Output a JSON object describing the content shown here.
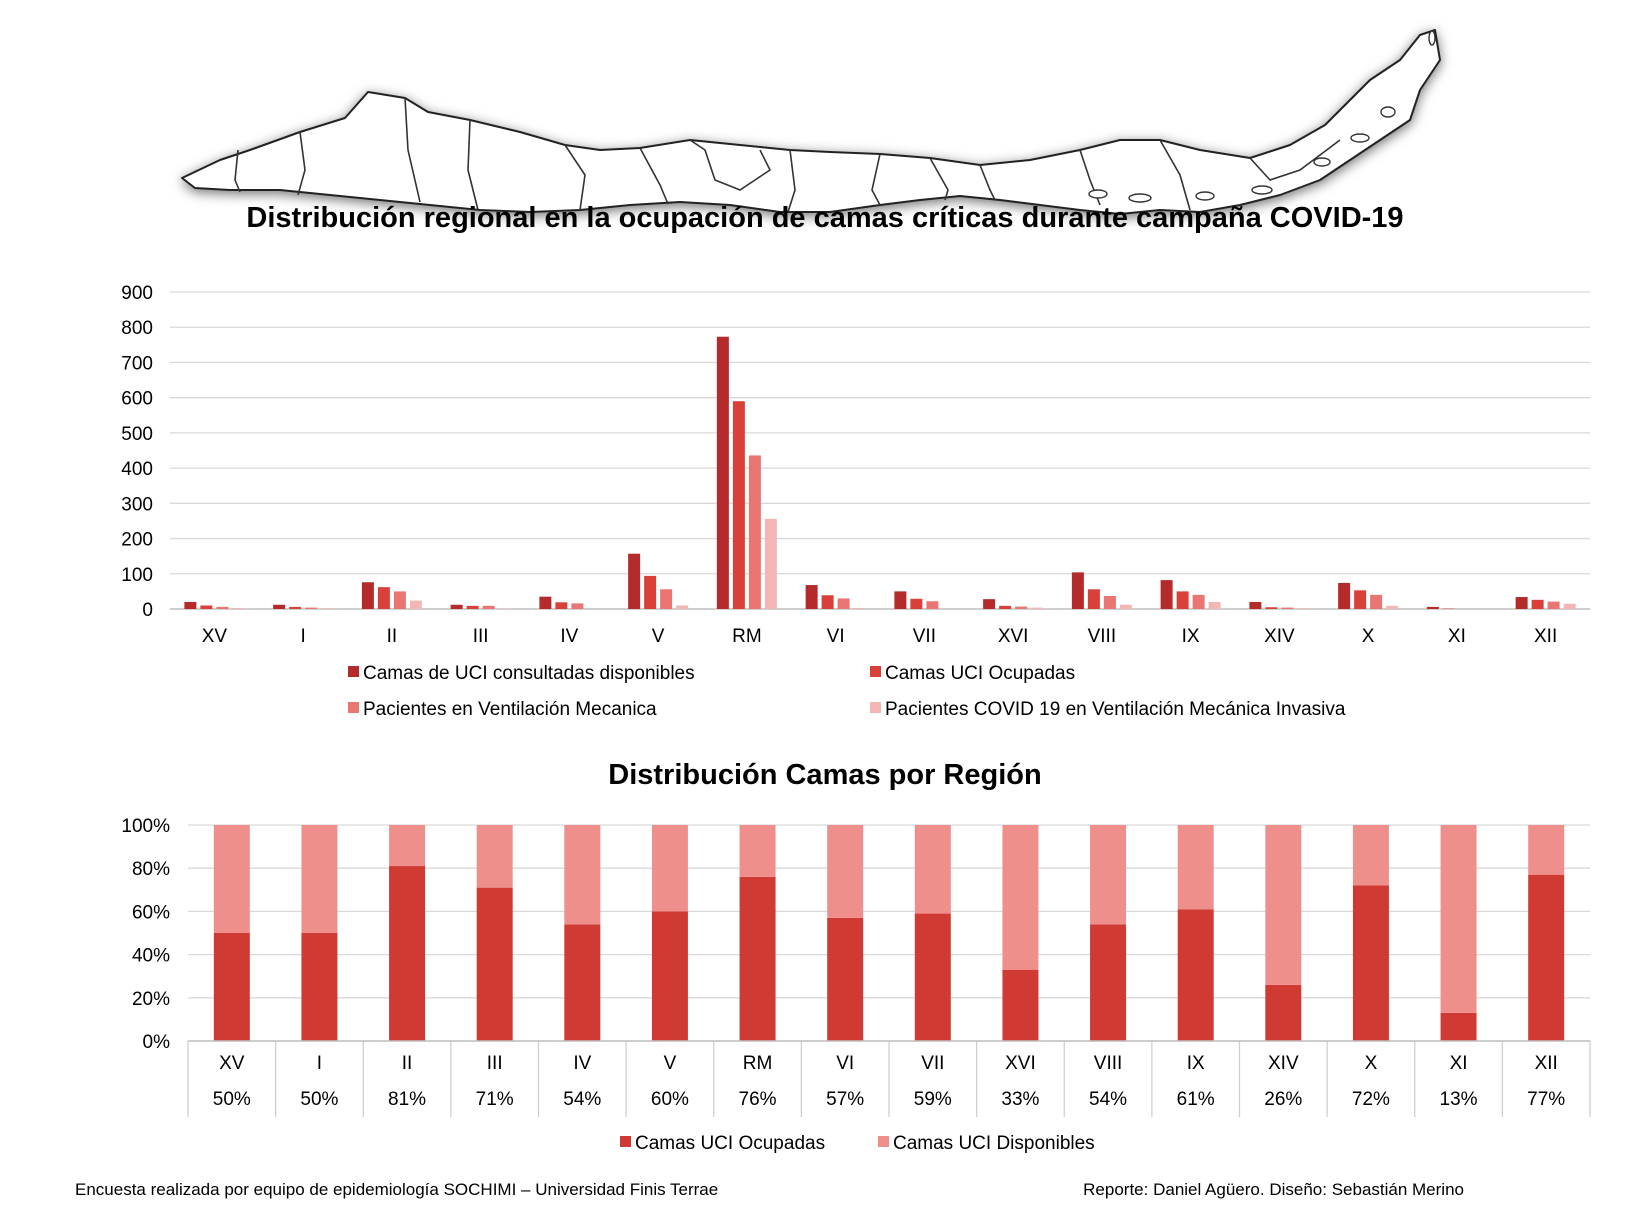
{
  "colors": {
    "s1": "#b52b2b",
    "s2": "#d9403a",
    "s3": "#ea7674",
    "s4": "#f2b6b4",
    "occupied": "#cf3a32",
    "available": "#ef8f8c",
    "grid": "#d9d9d9"
  },
  "chart_data": [
    {
      "type": "bar",
      "title": "Distribución regional en la ocupación de camas críticas durante campaña COVID-19",
      "categories": [
        "XV",
        "I",
        "II",
        "III",
        "IV",
        "V",
        "RM",
        "VI",
        "VII",
        "XVI",
        "VIII",
        "IX",
        "XIV",
        "X",
        "XI",
        "XII"
      ],
      "yticks": [
        "0",
        "100",
        "200",
        "300",
        "400",
        "500",
        "600",
        "700",
        "800",
        "900"
      ],
      "ylim": [
        0,
        900
      ],
      "grid": true,
      "legend_position": "bottom",
      "series": [
        {
          "name": "Camas de UCI consultadas disponibles",
          "values": [
            20,
            12,
            76,
            12,
            35,
            157,
            773,
            68,
            50,
            28,
            104,
            82,
            20,
            74,
            6,
            34
          ]
        },
        {
          "name": "Camas UCI Ocupadas",
          "values": [
            10,
            6,
            62,
            9,
            19,
            94,
            590,
            39,
            29,
            9,
            56,
            50,
            5,
            53,
            1,
            26
          ]
        },
        {
          "name": "Pacientes en Ventilación Mecanica",
          "values": [
            6,
            4,
            50,
            9,
            16,
            56,
            436,
            30,
            22,
            7,
            37,
            40,
            4,
            40,
            0,
            21
          ]
        },
        {
          "name": "Pacientes COVID 19 en Ventilación Mecánica Invasiva",
          "values": [
            3,
            2,
            24,
            1,
            0,
            10,
            256,
            3,
            0,
            4,
            12,
            20,
            2,
            9,
            0,
            15
          ]
        }
      ]
    },
    {
      "type": "bar",
      "stacked": true,
      "percent": true,
      "title": "Distribución Camas por Región",
      "categories": [
        "XV",
        "I",
        "II",
        "III",
        "IV",
        "V",
        "RM",
        "VI",
        "VII",
        "XVI",
        "VIII",
        "IX",
        "XIV",
        "X",
        "XI",
        "XII"
      ],
      "yticks": [
        "0%",
        "20%",
        "40%",
        "60%",
        "80%",
        "100%"
      ],
      "ylim": [
        0,
        100
      ],
      "grid": true,
      "legend_position": "bottom",
      "table_labels": [
        "50%",
        "50%",
        "81%",
        "71%",
        "54%",
        "60%",
        "76%",
        "57%",
        "59%",
        "33%",
        "54%",
        "61%",
        "26%",
        "72%",
        "13%",
        "77%"
      ],
      "series": [
        {
          "name": "Camas UCI Ocupadas",
          "values": [
            50,
            50,
            81,
            71,
            54,
            60,
            76,
            57,
            59,
            33,
            54,
            61,
            26,
            72,
            13,
            77
          ]
        },
        {
          "name": "Camas UCI Disponibles",
          "values": [
            50,
            50,
            19,
            29,
            46,
            40,
            24,
            43,
            41,
            67,
            46,
            39,
            74,
            28,
            87,
            23
          ]
        }
      ]
    }
  ],
  "footer": {
    "left": "Encuesta realizada por equipo de epidemiología SOCHIMI – Universidad Finis Terrae",
    "right": "Reporte: Daniel Agüero. Diseño: Sebastián Merino"
  }
}
